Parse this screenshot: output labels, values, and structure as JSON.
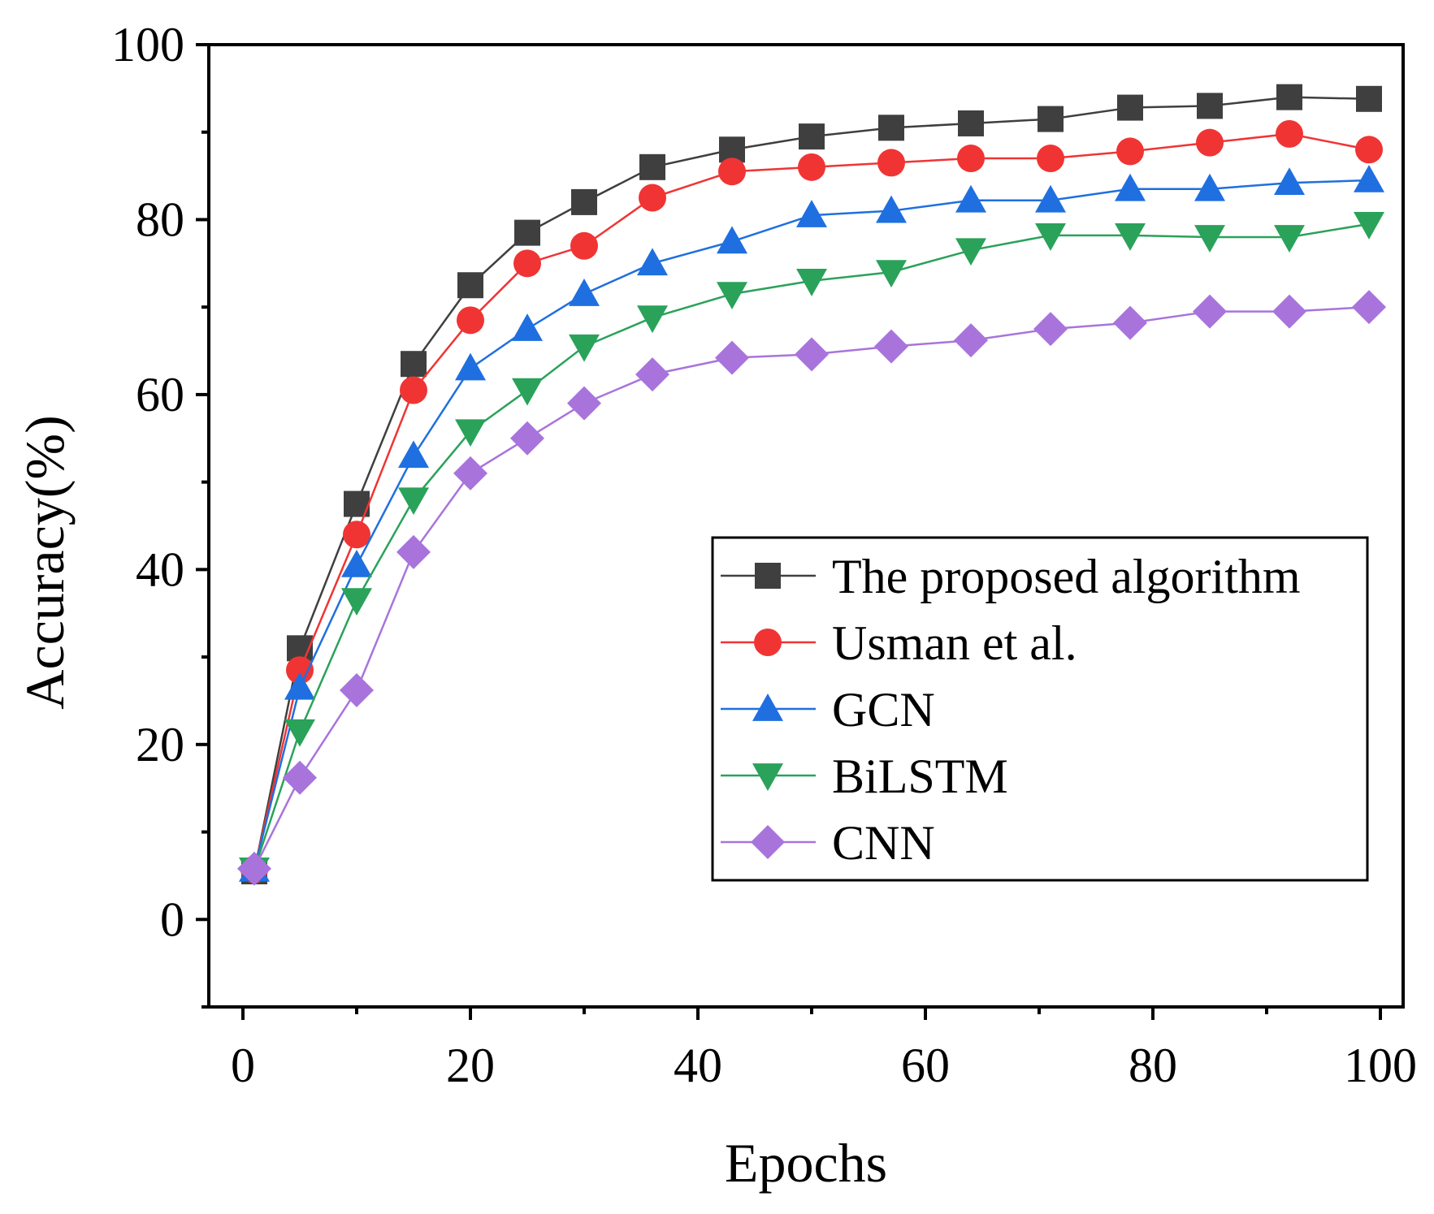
{
  "chart_data": {
    "type": "line",
    "title": "",
    "xlabel": "Epochs",
    "ylabel": "Accuracy(%)",
    "xlim": [
      -3,
      102
    ],
    "ylim": [
      -10,
      100
    ],
    "xticks": [
      0,
      20,
      40,
      60,
      80,
      100
    ],
    "yticks": [
      0,
      20,
      40,
      60,
      80,
      100
    ],
    "x_minor_ticks": [
      10,
      30,
      50,
      70,
      90
    ],
    "y_minor_ticks": [
      -10,
      10,
      30,
      50,
      70,
      90
    ],
    "grid": false,
    "legend_position": "center-right",
    "x": [
      1,
      5,
      10,
      15,
      20,
      25,
      30,
      36,
      43,
      50,
      57,
      64,
      71,
      78,
      85,
      92,
      99
    ],
    "series": [
      {
        "name": "The proposed algorithm",
        "color": "#3f3f3f",
        "marker": "square",
        "values": [
          5.5,
          31,
          47.5,
          63.5,
          72.5,
          78.5,
          82,
          86,
          88,
          89.5,
          90.5,
          91,
          91.5,
          92.8,
          93,
          94,
          93.8
        ]
      },
      {
        "name": "Usman et al.",
        "color": "#f03434",
        "marker": "circle",
        "values": [
          5.7,
          28.5,
          44,
          60.5,
          68.5,
          75,
          77,
          82.5,
          85.5,
          86,
          86.5,
          87,
          87,
          87.8,
          88.8,
          89.8,
          88
        ]
      },
      {
        "name": "GCN",
        "color": "#1f6fe0",
        "marker": "triangle-up",
        "values": [
          5.7,
          26.5,
          40.5,
          53,
          63,
          67.5,
          71.5,
          75,
          77.5,
          80.5,
          81,
          82.2,
          82.2,
          83.5,
          83.5,
          84.2,
          84.5
        ]
      },
      {
        "name": "BiLSTM",
        "color": "#2aa25a",
        "marker": "triangle-down",
        "values": [
          5.7,
          21.5,
          36.5,
          48,
          55.8,
          60.5,
          65.5,
          68.8,
          71.5,
          73,
          74,
          76.5,
          78.2,
          78.2,
          78,
          78,
          79.5
        ]
      },
      {
        "name": "CNN",
        "color": "#a874dc",
        "marker": "diamond",
        "values": [
          5.8,
          16.2,
          26.2,
          42,
          51,
          55,
          59,
          62.3,
          64.2,
          64.6,
          65.5,
          66.2,
          67.5,
          68.2,
          69.5,
          69.5,
          70
        ]
      }
    ]
  }
}
